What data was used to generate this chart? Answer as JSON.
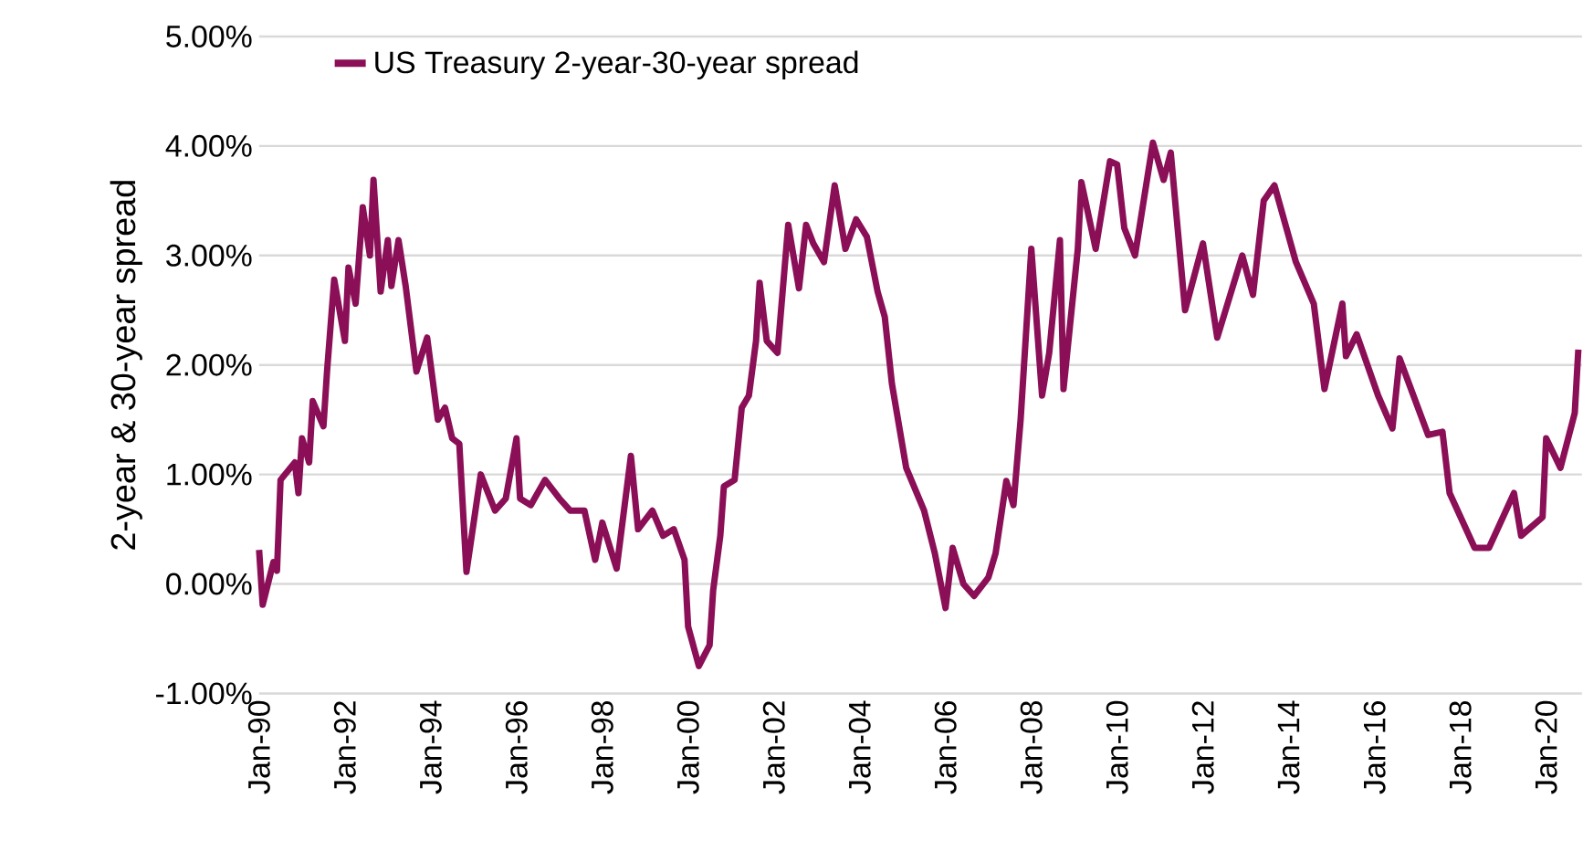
{
  "chart_data": {
    "type": "line",
    "ylabel": "2-year & 30-year spread",
    "legend": "top left",
    "grid": "y",
    "line_style": "solid",
    "marker": "none",
    "xlim": [
      "1990-01",
      "2020-11"
    ],
    "ylim": [
      -1,
      5
    ],
    "xticks": [
      {
        "value": "1990-01",
        "label": "Jan-90"
      },
      {
        "value": "1992-01",
        "label": "Jan-92"
      },
      {
        "value": "1994-01",
        "label": "Jan-94"
      },
      {
        "value": "1996-01",
        "label": "Jan-96"
      },
      {
        "value": "1998-01",
        "label": "Jan-98"
      },
      {
        "value": "2000-01",
        "label": "Jan-00"
      },
      {
        "value": "2002-01",
        "label": "Jan-02"
      },
      {
        "value": "2004-01",
        "label": "Jan-04"
      },
      {
        "value": "2006-01",
        "label": "Jan-06"
      },
      {
        "value": "2008-01",
        "label": "Jan-08"
      },
      {
        "value": "2010-01",
        "label": "Jan-10"
      },
      {
        "value": "2012-01",
        "label": "Jan-12"
      },
      {
        "value": "2014-01",
        "label": "Jan-14"
      },
      {
        "value": "2016-01",
        "label": "Jan-16"
      },
      {
        "value": "2018-01",
        "label": "Jan-18"
      },
      {
        "value": "2020-01",
        "label": "Jan-20"
      }
    ],
    "yticks": [
      {
        "value": -1,
        "label": "-1.00%"
      },
      {
        "value": 0,
        "label": "0.00%"
      },
      {
        "value": 1,
        "label": "1.00%"
      },
      {
        "value": 2,
        "label": "2.00%"
      },
      {
        "value": 3,
        "label": "3.00%"
      },
      {
        "value": 4,
        "label": "4.00%"
      },
      {
        "value": 5,
        "label": "5.00%"
      }
    ],
    "series": [
      {
        "name": "US Treasury 2-year-30-year spread",
        "color": "#8a0f57",
        "x": [
          "1990-01",
          "1990-02",
          "1990-05",
          "1990-06",
          "1990-07",
          "1990-11",
          "1990-12",
          "1991-01",
          "1991-03",
          "1991-04",
          "1991-07",
          "1991-08",
          "1991-10",
          "1992-01",
          "1992-02",
          "1992-04",
          "1992-06",
          "1992-08",
          "1992-09",
          "1992-11",
          "1993-01",
          "1993-02",
          "1993-04",
          "1993-06",
          "1993-09",
          "1993-12",
          "1994-03",
          "1994-05",
          "1994-07",
          "1994-09",
          "1994-11",
          "1995-02",
          "1995-03",
          "1995-07",
          "1995-10",
          "1996-01",
          "1996-02",
          "1996-05",
          "1996-09",
          "1997-01",
          "1997-04",
          "1997-08",
          "1997-11",
          "1998-01",
          "1998-05",
          "1998-09",
          "1998-11",
          "1999-03",
          "1999-06",
          "1999-09",
          "1999-12",
          "2000-01",
          "2000-04",
          "2000-07",
          "2000-08",
          "2000-10",
          "2000-11",
          "2001-02",
          "2001-04",
          "2001-06",
          "2001-08",
          "2001-09",
          "2001-11",
          "2002-02",
          "2002-05",
          "2002-08",
          "2002-10",
          "2002-12",
          "2003-03",
          "2003-06",
          "2003-09",
          "2003-12",
          "2004-03",
          "2004-06",
          "2004-08",
          "2004-10",
          "2005-02",
          "2005-07",
          "2005-10",
          "2006-01",
          "2006-03",
          "2006-06",
          "2006-09",
          "2007-01",
          "2007-03",
          "2007-06",
          "2007-08",
          "2007-10",
          "2008-01",
          "2008-04",
          "2008-06",
          "2008-09",
          "2008-10",
          "2009-02",
          "2009-03",
          "2009-07",
          "2009-11",
          "2010-01",
          "2010-03",
          "2010-06",
          "2010-11",
          "2011-02",
          "2011-04",
          "2011-08",
          "2012-01",
          "2012-05",
          "2012-12",
          "2013-03",
          "2013-06",
          "2013-09",
          "2014-03",
          "2014-08",
          "2014-11",
          "2015-04",
          "2015-05",
          "2015-08",
          "2016-02",
          "2016-06",
          "2016-08",
          "2017-04",
          "2017-08",
          "2017-10",
          "2018-05",
          "2018-09",
          "2019-04",
          "2019-06",
          "2019-12",
          "2020-01",
          "2020-05",
          "2020-09",
          "2020-10"
        ],
        "values": [
          0.31,
          -0.19,
          0.2,
          0.12,
          0.95,
          1.11,
          0.83,
          1.33,
          1.11,
          1.67,
          1.44,
          1.94,
          2.78,
          2.22,
          2.89,
          2.56,
          3.44,
          3.0,
          3.69,
          2.67,
          3.14,
          2.72,
          3.14,
          2.72,
          1.94,
          2.25,
          1.5,
          1.61,
          1.33,
          1.28,
          0.11,
          0.78,
          1.0,
          0.67,
          0.78,
          1.33,
          0.78,
          0.72,
          0.95,
          0.78,
          0.67,
          0.67,
          0.22,
          0.56,
          0.14,
          1.17,
          0.5,
          0.67,
          0.44,
          0.5,
          0.22,
          -0.39,
          -0.75,
          -0.56,
          -0.06,
          0.44,
          0.89,
          0.95,
          1.61,
          1.72,
          2.22,
          2.75,
          2.22,
          2.11,
          3.28,
          2.7,
          3.28,
          3.11,
          2.94,
          3.64,
          3.06,
          3.33,
          3.17,
          2.67,
          2.44,
          1.83,
          1.06,
          0.67,
          0.28,
          -0.22,
          0.33,
          0.0,
          -0.11,
          0.06,
          0.28,
          0.94,
          0.72,
          1.5,
          3.06,
          1.72,
          2.11,
          3.14,
          1.78,
          3.06,
          3.67,
          3.06,
          3.86,
          3.83,
          3.25,
          3.0,
          4.03,
          3.69,
          3.94,
          2.5,
          3.11,
          2.25,
          3.0,
          2.64,
          3.5,
          3.64,
          2.94,
          2.56,
          1.78,
          2.56,
          2.08,
          2.28,
          1.72,
          1.42,
          2.06,
          1.36,
          1.39,
          0.83,
          0.33,
          0.33,
          0.83,
          0.44,
          0.61,
          1.33,
          1.06,
          1.56,
          2.14
        ]
      }
    ]
  }
}
